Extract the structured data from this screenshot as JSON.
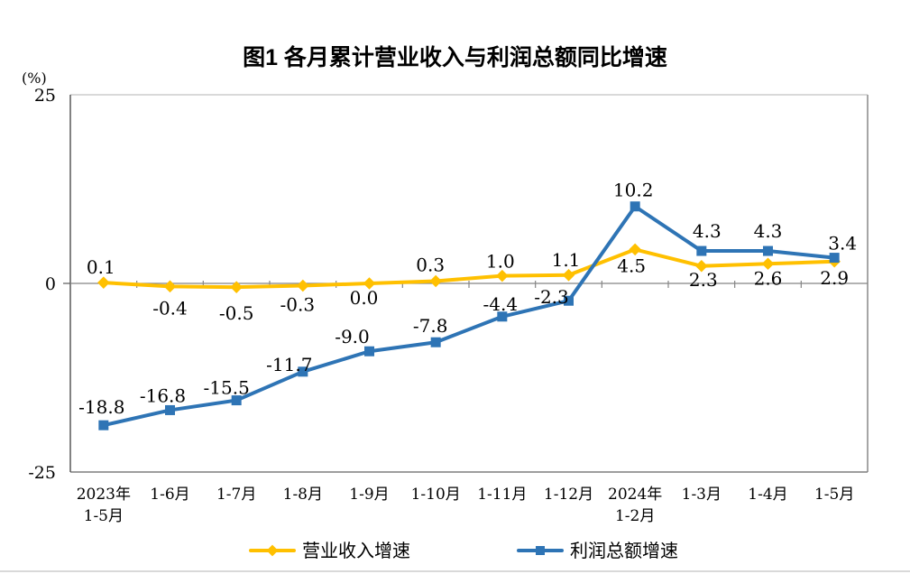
{
  "title": "图1 各月累计营业收入与利润总额同比增速",
  "y_axis": {
    "unit_label": "(%)",
    "tick_labels": [
      "25",
      "0",
      "-25"
    ],
    "tick_values": [
      25,
      0,
      -25
    ]
  },
  "legend": {
    "items": [
      {
        "label": "营业收入增速",
        "color": "#FFC000",
        "marker": "diamond"
      },
      {
        "label": "利润总额增速",
        "color": "#2E74B5",
        "marker": "square"
      }
    ]
  },
  "colors": {
    "series_revenue": "#FFC000",
    "series_profit": "#2E74B5",
    "axis_line": "#595959",
    "zero_line": "#858585",
    "plot_border_top": "#D9D9D9",
    "plot_border_right": "#A6A6A6",
    "plot_border_bottom": "#7F7F7F",
    "text": "#000000"
  },
  "chart_data": {
    "type": "line",
    "title": "图1 各月累计营业收入与利润总额同比增速",
    "xlabel": "",
    "ylabel": "(%)",
    "ylim": [
      -25,
      25
    ],
    "y_ticks": [
      25,
      0,
      -25
    ],
    "grid": false,
    "legend_position": "bottom",
    "categories": [
      "2023年1-5月",
      "1-6月",
      "1-7月",
      "1-8月",
      "1-9月",
      "1-10月",
      "1-11月",
      "1-12月",
      "2024年1-2月",
      "1-3月",
      "1-4月",
      "1-5月"
    ],
    "category_label_lines": [
      [
        "2023年",
        "1-5月"
      ],
      [
        "1-6月"
      ],
      [
        "1-7月"
      ],
      [
        "1-8月"
      ],
      [
        "1-9月"
      ],
      [
        "1-10月"
      ],
      [
        "1-11月"
      ],
      [
        "1-12月"
      ],
      [
        "2024年",
        "1-2月"
      ],
      [
        "1-3月"
      ],
      [
        "1-4月"
      ],
      [
        "1-5月"
      ]
    ],
    "series": [
      {
        "name": "营业收入增速",
        "color": "#FFC000",
        "marker": "diamond",
        "values": [
          0.1,
          -0.4,
          -0.5,
          -0.3,
          0.0,
          0.3,
          1.0,
          1.1,
          4.5,
          2.3,
          2.6,
          2.9
        ],
        "label_offsets": [
          [
            -3,
            -17
          ],
          [
            0,
            24
          ],
          [
            0,
            29
          ],
          [
            -6,
            21
          ],
          [
            -6,
            16
          ],
          [
            -6,
            -18
          ],
          [
            -2,
            -16
          ],
          [
            -3,
            -17
          ],
          [
            -4,
            18
          ],
          [
            2,
            15
          ],
          [
            0,
            16
          ],
          [
            0,
            18
          ]
        ]
      },
      {
        "name": "利润总额增速",
        "color": "#2E74B5",
        "marker": "square",
        "values": [
          -18.8,
          -16.8,
          -15.5,
          -11.7,
          -9.0,
          -7.8,
          -4.4,
          -2.3,
          10.2,
          4.3,
          4.3,
          3.4
        ],
        "label_offsets": [
          [
            -2,
            -20
          ],
          [
            -8,
            -16
          ],
          [
            -11,
            -14
          ],
          [
            -15,
            -8
          ],
          [
            -19,
            -16
          ],
          [
            -6,
            -18
          ],
          [
            -2,
            -14
          ],
          [
            -19,
            -4
          ],
          [
            -2,
            -18
          ],
          [
            6,
            -22
          ],
          [
            0,
            -22
          ],
          [
            9,
            -16
          ]
        ]
      }
    ]
  }
}
